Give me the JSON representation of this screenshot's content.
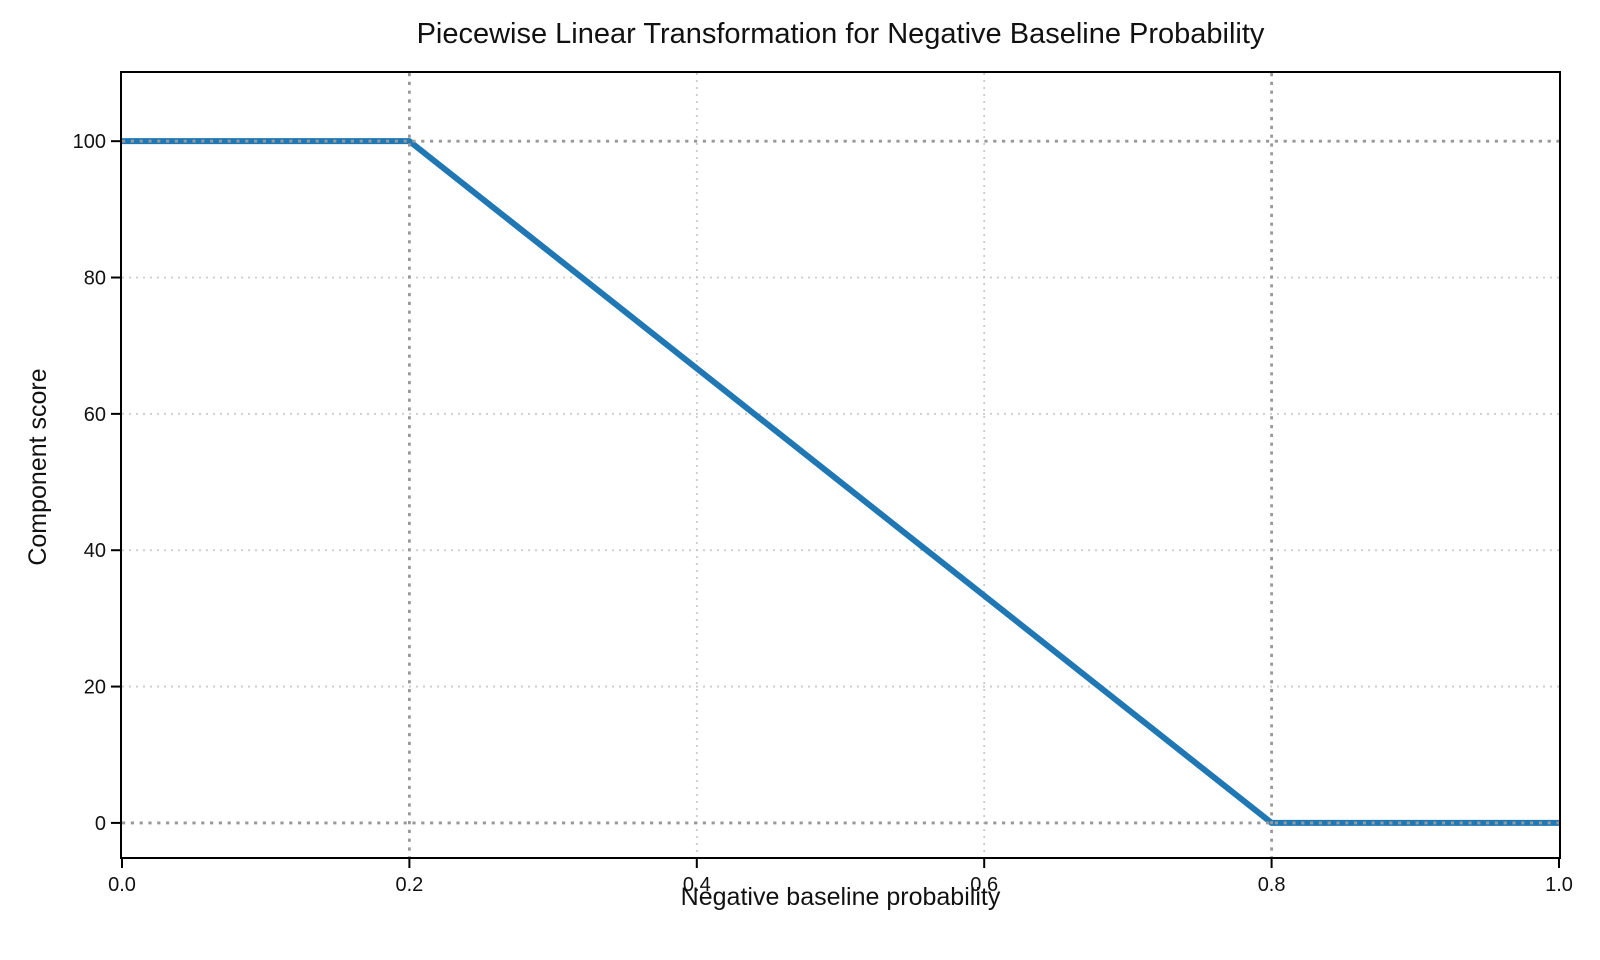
{
  "page": {
    "title": "Piecewise Linear Transformation for Negative Baseline Probability"
  },
  "chart_data": {
    "type": "line",
    "title": "Piecewise Linear Transformation for Negative Baseline Probability",
    "xlabel": "Negative baseline probability",
    "ylabel": "Component score",
    "xlim": [
      0.0,
      1.0
    ],
    "ylim": [
      -5,
      110
    ],
    "xticks": [
      0.0,
      0.2,
      0.4,
      0.6,
      0.8,
      1.0
    ],
    "xtick_labels": [
      "0.0",
      "0.2",
      "0.4",
      "0.6",
      "0.8",
      "1.0"
    ],
    "yticks": [
      0,
      20,
      40,
      60,
      80,
      100
    ],
    "ytick_labels": [
      "0",
      "20",
      "40",
      "60",
      "80",
      "100"
    ],
    "grid": true,
    "legend": "none",
    "series": [
      {
        "name": "component-score-line",
        "x": [
          0.0,
          0.2,
          0.8,
          1.0
        ],
        "y": [
          100,
          100,
          0,
          0
        ],
        "color": "#1f77b4",
        "linewidth": 6
      }
    ],
    "reference_lines": {
      "vertical_x": [
        0.2,
        0.8
      ],
      "horizontal_y": [
        0,
        100
      ],
      "color": "#999999",
      "style": "dotted"
    },
    "grid_color": "#cbcbcb",
    "axis_color": "#000000",
    "text_color": "#111111",
    "background": "#ffffff"
  }
}
